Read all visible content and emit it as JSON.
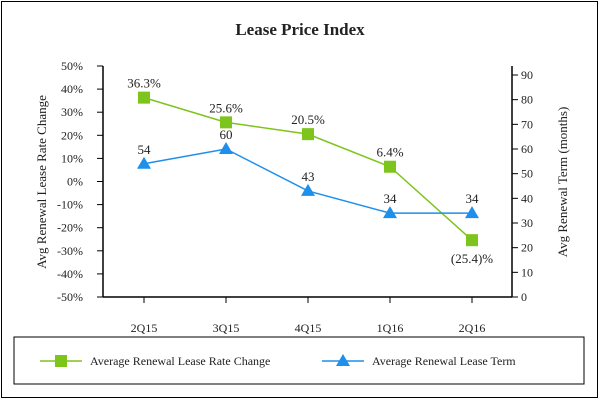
{
  "chart_data": {
    "type": "line",
    "title": "Lease Price Index",
    "categories": [
      "2Q15",
      "3Q15",
      "4Q15",
      "1Q16",
      "2Q16"
    ],
    "ylabel_left": "Avg Renewal Lease Rate Change",
    "ylabel_right": "Avg Renewal Term (months)",
    "ylim_left": [
      -50,
      50
    ],
    "yticks_left": [
      "50%",
      "40%",
      "30%",
      "20%",
      "10%",
      "0%",
      "-10%",
      "-20%",
      "-30%",
      "-40%",
      "-50%"
    ],
    "ylim_right": [
      0,
      90
    ],
    "yticks_right": [
      "90",
      "80",
      "70",
      "60",
      "50",
      "40",
      "30",
      "20",
      "10",
      "0"
    ],
    "grid": false,
    "legend_placement": "bottom",
    "series": [
      {
        "name": "Average Renewal Lease Rate Change",
        "axis": "left",
        "marker": "square",
        "color": "#7DC41C",
        "values": [
          36.3,
          25.6,
          20.5,
          6.4,
          -25.4
        ],
        "labels": [
          "36.3%",
          "25.6%",
          "20.5%",
          "6.4%",
          "(25.4)%"
        ]
      },
      {
        "name": "Average Renewal Lease Term",
        "axis": "right",
        "marker": "triangle",
        "color": "#1E8FEA",
        "values": [
          54,
          60,
          43,
          34,
          34
        ],
        "labels": [
          "54",
          "60",
          "43",
          "34",
          "34"
        ]
      }
    ]
  }
}
